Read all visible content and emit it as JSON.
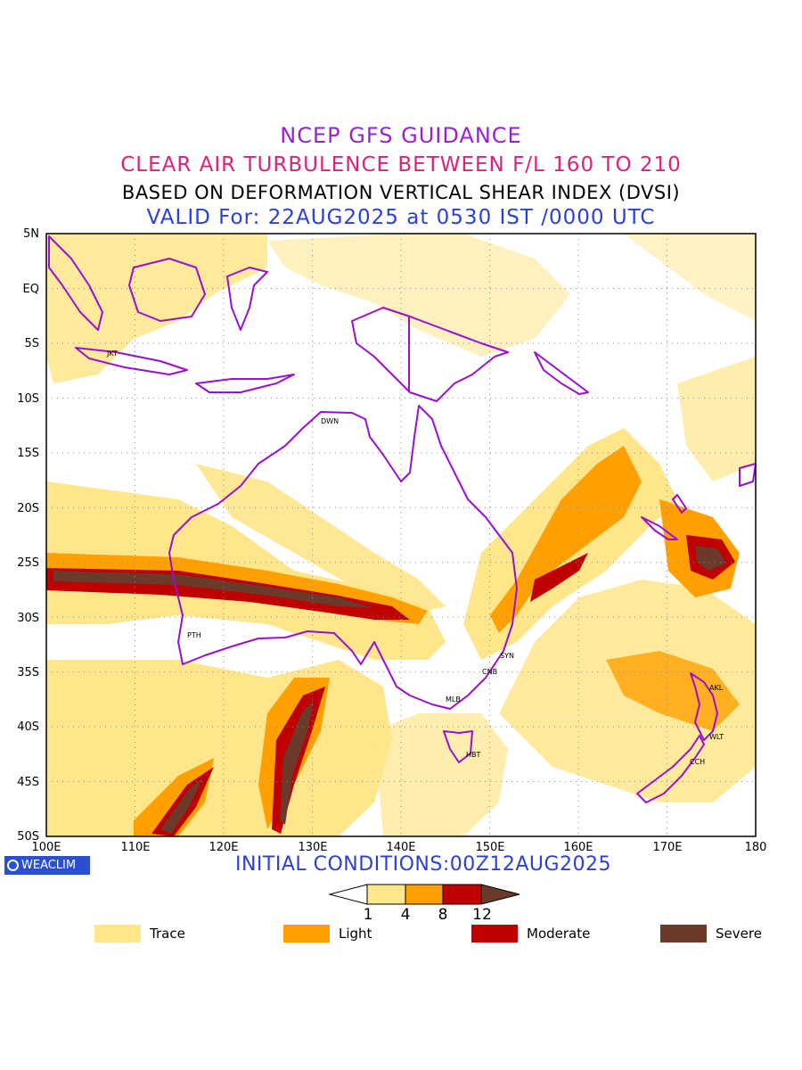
{
  "titles": {
    "line1": "NCEP GFS GUIDANCE",
    "line2": "CLEAR AIR TURBULENCE BETWEEN F/L 160 TO 210",
    "line3": "BASED ON DEFORMATION VERTICAL SHEAR INDEX (DVSI)",
    "line4": "VALID For: 22AUG2025 at 0530 IST /0000 UTC"
  },
  "axes": {
    "lat_labels": [
      "5N",
      "EQ",
      "5S",
      "10S",
      "15S",
      "20S",
      "25S",
      "30S",
      "35S",
      "40S",
      "45S",
      "50S"
    ],
    "lon_labels": [
      "100E",
      "110E",
      "120E",
      "130E",
      "140E",
      "150E",
      "160E",
      "170E",
      "180"
    ]
  },
  "cities": [
    {
      "code": "JKT"
    },
    {
      "code": "DWN"
    },
    {
      "code": "PTH"
    },
    {
      "code": "SYN"
    },
    {
      "code": "CNB"
    },
    {
      "code": "MLB"
    },
    {
      "code": "HBT"
    },
    {
      "code": "AKL"
    },
    {
      "code": "WLT"
    },
    {
      "code": "CCH"
    }
  ],
  "badge": {
    "label": "WEACLIM"
  },
  "initial_conditions": "INITIAL CONDITIONS:00Z12AUG2025",
  "colorbar": {
    "ticks": [
      "1",
      "4",
      "8",
      "12"
    ]
  },
  "legend": [
    {
      "label": "Trace",
      "color": "#ffe68a"
    },
    {
      "label": "Light",
      "color": "#ffa000"
    },
    {
      "label": "Moderate",
      "color": "#c00000"
    },
    {
      "label": "Severe",
      "color": "#6b3a2a"
    }
  ],
  "colors": {
    "coast": "#9a10d0",
    "grid": "#8c8c8c"
  }
}
